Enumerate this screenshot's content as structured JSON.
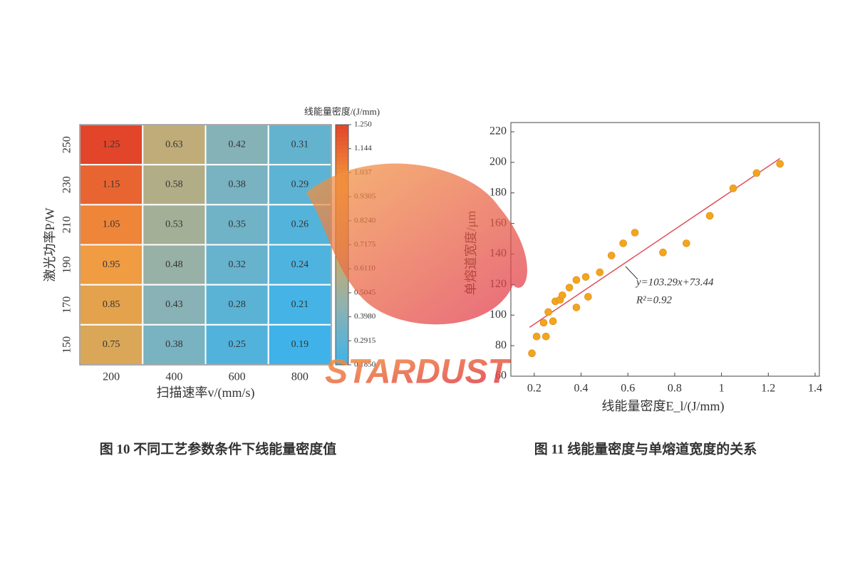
{
  "chart_data": [
    {
      "type": "heatmap",
      "x_label": "扫描速率v/(mm/s)",
      "y_label": "激光功率P/W",
      "colorbar_title": "线能量密度/(J/mm)",
      "x_categories": [
        200,
        400,
        600,
        800
      ],
      "y_categories": [
        250,
        230,
        210,
        190,
        170,
        150
      ],
      "values": [
        [
          1.25,
          0.63,
          0.42,
          0.31
        ],
        [
          1.15,
          0.58,
          0.38,
          0.29
        ],
        [
          1.05,
          0.53,
          0.35,
          0.26
        ],
        [
          0.95,
          0.48,
          0.32,
          0.24
        ],
        [
          0.85,
          0.43,
          0.28,
          0.21
        ],
        [
          0.75,
          0.38,
          0.25,
          0.19
        ]
      ],
      "clim": [
        0.185,
        1.25
      ],
      "colormap": [
        "#3db3ea",
        "#8fb2b0",
        "#d6a95c",
        "#f39a3e",
        "#e2452a"
      ],
      "cticks": [
        {
          "value": 1.25,
          "label": "1.250"
        },
        {
          "value": 1.1435,
          "label": "1.144"
        },
        1.037,
        0.9305,
        {
          "value": 0.824,
          "label": "0.8240"
        },
        0.7175,
        {
          "value": 0.611,
          "label": "0.6110"
        },
        0.5045,
        {
          "value": 0.398,
          "label": "0.3980"
        },
        0.2915,
        {
          "value": 0.185,
          "label": "0.1850"
        }
      ],
      "caption": "图 10  不同工艺参数条件下线能量密度值"
    },
    {
      "type": "scatter",
      "x_label": "线能量密度E_l/(J/mm)",
      "y_label": "单熔道宽度/μm",
      "x": [
        0.19,
        0.21,
        0.24,
        0.25,
        0.26,
        0.28,
        0.29,
        0.31,
        0.32,
        0.35,
        0.38,
        0.38,
        0.42,
        0.43,
        0.48,
        0.53,
        0.58,
        0.63,
        0.75,
        0.85,
        0.95,
        1.05,
        1.15,
        1.25
      ],
      "values": [
        75,
        86,
        95,
        86,
        102,
        96,
        109,
        110,
        113,
        118,
        105,
        123,
        125,
        112,
        128,
        139,
        147,
        154,
        141,
        147,
        165,
        183,
        193,
        199
      ],
      "color": "#f3a51f",
      "fit": {
        "slope": 103.29,
        "intercept": 73.44,
        "x_range": [
          0.18,
          1.25
        ],
        "color": "#e0505a"
      },
      "annotations": [
        "y=103.29x+73.44",
        "R²=0.92"
      ],
      "xlim": [
        0.1,
        1.4
      ],
      "xticks": [
        0.2,
        0.4,
        0.6,
        0.8,
        1.0,
        1.2,
        1.4
      ],
      "ylim": [
        60,
        220
      ],
      "yticks": [
        60,
        80,
        100,
        120,
        140,
        160,
        180,
        200,
        220
      ],
      "caption": "图 11  线能量密度与单熔道宽度的关系"
    }
  ],
  "watermark": "STARDUST"
}
